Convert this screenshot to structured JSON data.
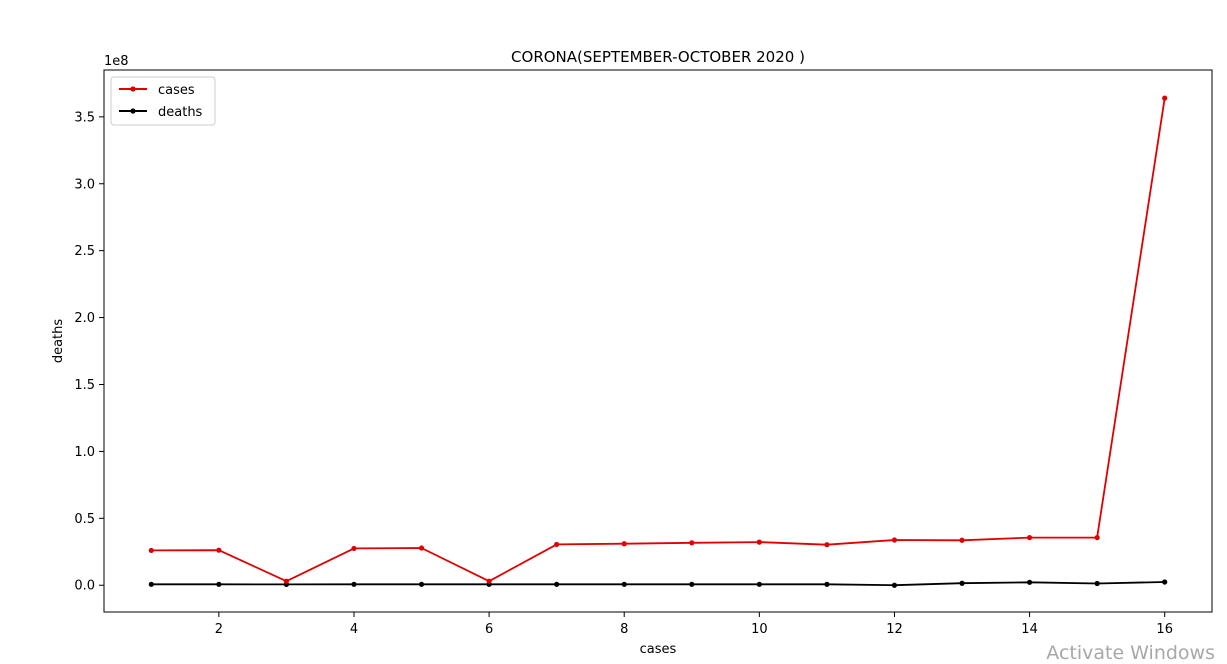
{
  "chart_data": {
    "type": "line",
    "title": "CORONA(SEPTEMBER-OCTOBER 2020 )",
    "xlabel": "cases",
    "ylabel": "deaths",
    "scale_label": "1e8",
    "xlim": [
      0.3,
      16.7
    ],
    "ylim": [
      -0.2,
      3.85
    ],
    "xticks": [
      2,
      4,
      6,
      8,
      10,
      12,
      14,
      16
    ],
    "yticks": [
      0.0,
      0.5,
      1.0,
      1.5,
      2.0,
      2.5,
      3.0,
      3.5
    ],
    "ytick_labels": [
      "0.0",
      "0.5",
      "1.0",
      "1.5",
      "2.0",
      "2.5",
      "3.0",
      "3.5"
    ],
    "x": [
      1,
      2,
      3,
      4,
      5,
      6,
      7,
      8,
      9,
      10,
      11,
      12,
      13,
      14,
      15,
      16
    ],
    "legend_position": "upper-left",
    "series": [
      {
        "name": "cases",
        "color": "#e00000",
        "values": [
          0.26,
          0.262,
          0.03,
          0.275,
          0.278,
          0.03,
          0.305,
          0.31,
          0.317,
          0.322,
          0.303,
          0.338,
          0.336,
          0.356,
          0.356,
          3.64
        ]
      },
      {
        "name": "deaths",
        "color": "#000000",
        "values": [
          0.007,
          0.007,
          0.006,
          0.007,
          0.007,
          0.007,
          0.007,
          0.007,
          0.007,
          0.007,
          0.007,
          0.0,
          0.015,
          0.022,
          0.013,
          0.024
        ]
      }
    ]
  },
  "watermark": "Activate Windows"
}
